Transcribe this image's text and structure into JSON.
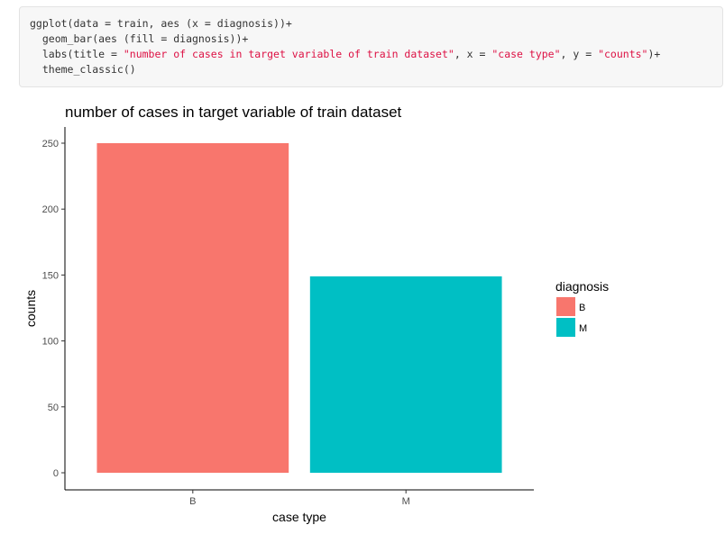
{
  "code": {
    "lines": [
      [
        {
          "t": "ggplot(data = train, aes (x = diagnosis))+",
          "s": false
        }
      ],
      [
        {
          "t": "  geom_bar(aes (fill = diagnosis))+",
          "s": false
        }
      ],
      [
        {
          "t": "  labs(title = ",
          "s": false
        },
        {
          "t": "\"number of cases in target variable of train dataset\"",
          "s": true
        },
        {
          "t": ", x = ",
          "s": false
        },
        {
          "t": "\"case type\"",
          "s": true
        },
        {
          "t": ", y = ",
          "s": false
        },
        {
          "t": "\"counts\"",
          "s": true
        },
        {
          "t": ")+",
          "s": false
        }
      ],
      [
        {
          "t": "  theme_classic()",
          "s": false
        }
      ]
    ],
    "string_color": "#dd1144",
    "text_color": "#333333"
  },
  "chart_data": {
    "type": "bar",
    "title": "number of cases in target variable of train dataset",
    "xlabel": "case type",
    "ylabel": "counts",
    "categories": [
      "B",
      "M"
    ],
    "values": [
      250,
      149
    ],
    "colors": [
      "#F8766D",
      "#00BFC4"
    ],
    "ylim": [
      0,
      250
    ],
    "yticks": [
      0,
      50,
      100,
      150,
      200,
      250
    ],
    "grid": false,
    "legend": {
      "title": "diagnosis",
      "position": "right",
      "entries": [
        {
          "label": "B",
          "color": "#F8766D"
        },
        {
          "label": "M",
          "color": "#00BFC4"
        }
      ]
    }
  }
}
